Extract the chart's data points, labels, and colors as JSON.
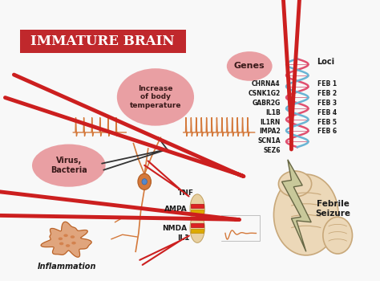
{
  "title": "IMMATURE BRAIN",
  "title_bg": "#c0282c",
  "title_color": "#ffffff",
  "bg_color": "#f8f8f8",
  "genes": [
    "CHRNA4",
    "CSNK1G2",
    "GABR2G",
    "IL1B",
    "IL1RN",
    "IMPA2",
    "SCN1A",
    "SEZ6"
  ],
  "loci": [
    "FEB 1",
    "FEB 2",
    "FEB 3",
    "FEB 4",
    "FEB 5",
    "FEB 6"
  ],
  "genes_label": "Genes",
  "loci_label": "Loci",
  "pink_blob_color": "#e8969a",
  "orange_color": "#d4793b",
  "red_arrow_color": "#cc1f1f",
  "dna_pink": "#e05070",
  "dna_blue": "#6ab4d4",
  "brain_color": "#ecd8b8",
  "brain_outline": "#c8a87a",
  "lightning_color": "#c8c89a",
  "lightning_outline": "#666644",
  "neuron_color": "#d4793b",
  "bacteria_color": "#d4793b",
  "text_dark": "#1a1a1a",
  "febrile_seizure_text": "Febrile\nSeizure",
  "increase_temp_text": "Increase\nof body\ntemperature",
  "virus_bacteria_text": "Virus,\nBacteria",
  "inflammation_text": "Inflammation",
  "tnf_text": "TNF",
  "ampa_text": "AMPA",
  "nmda_text": "NMDA",
  "il1_text": "IL1",
  "arrow_lw": 3.5,
  "receptor_red": "#dd2222",
  "receptor_yellow": "#ddaa00"
}
